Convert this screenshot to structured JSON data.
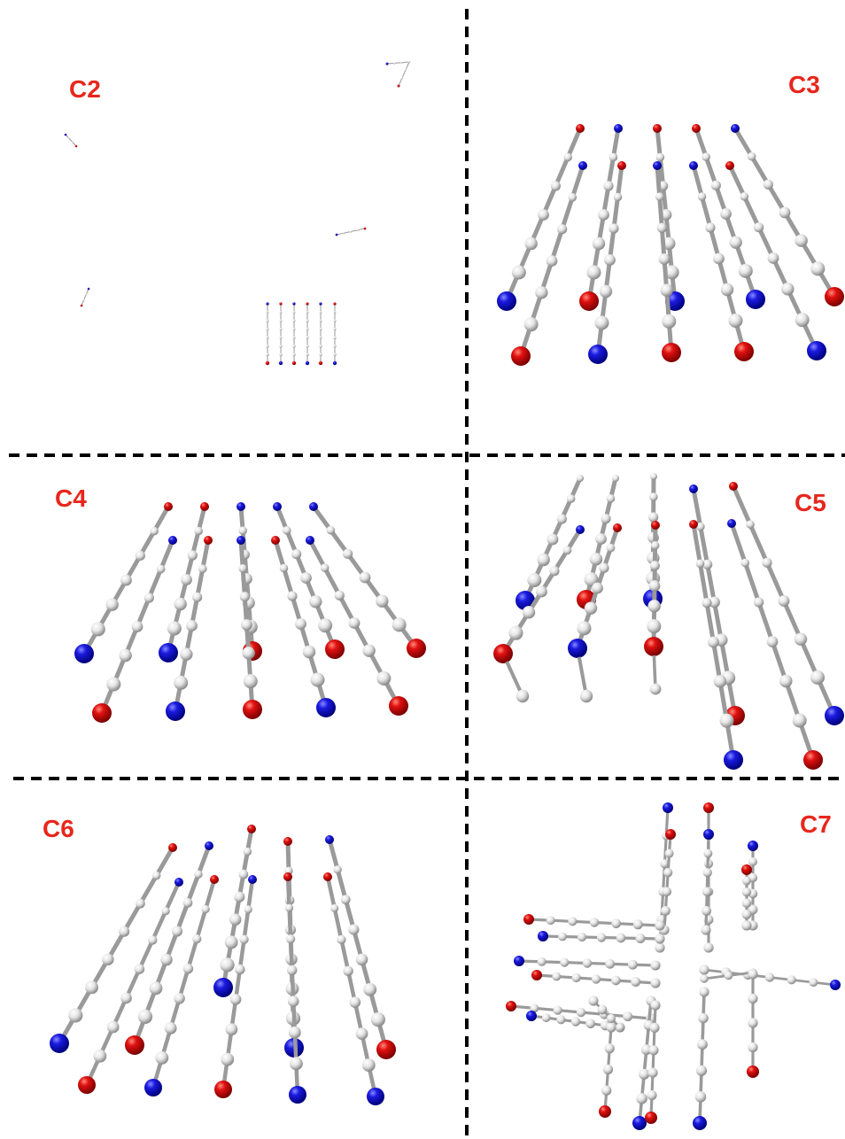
{
  "panels": [
    {
      "label": "C2"
    },
    {
      "label": "C3"
    },
    {
      "label": "C4"
    },
    {
      "label": "C5"
    },
    {
      "label": "C6"
    },
    {
      "label": "C7"
    }
  ]
}
